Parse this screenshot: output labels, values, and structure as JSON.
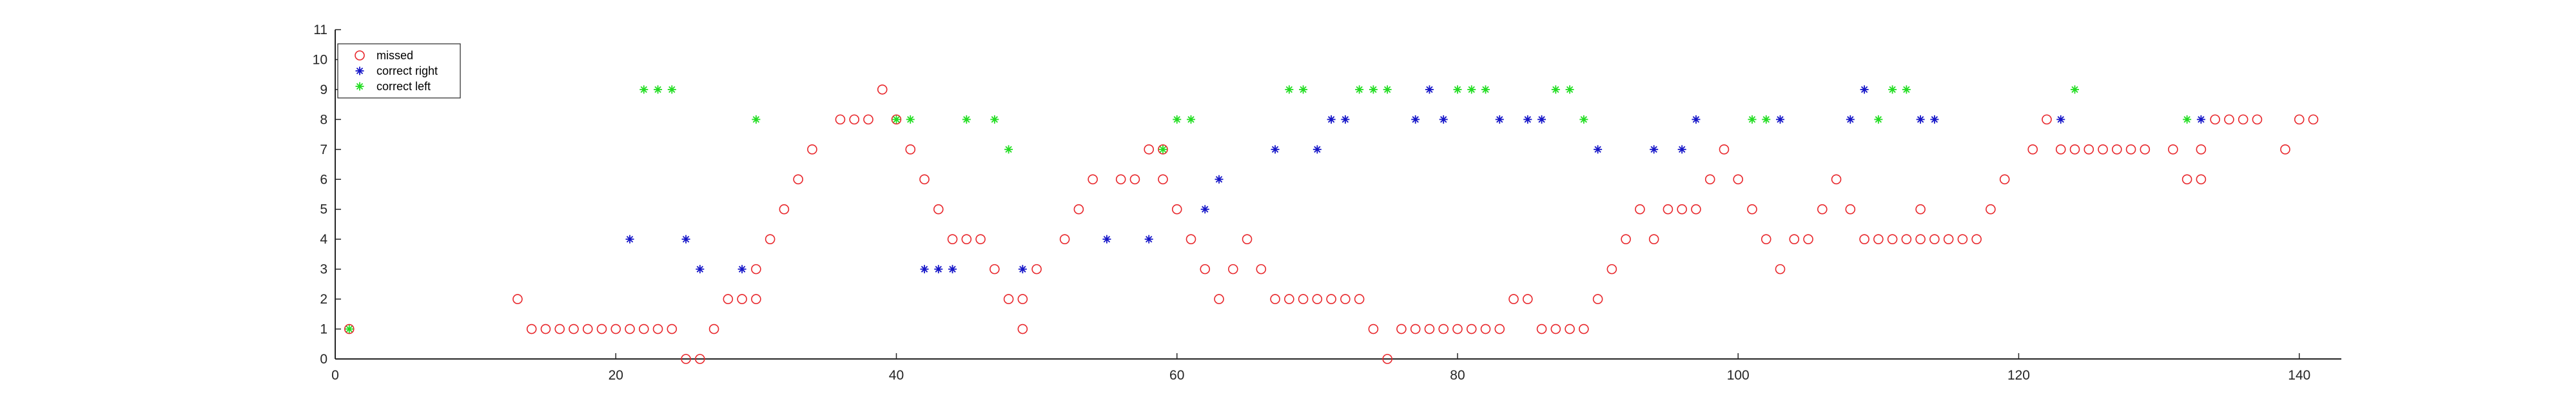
{
  "chart_data": {
    "type": "scatter",
    "title": "",
    "xlabel": "",
    "ylabel": "",
    "xlim": [
      0,
      143
    ],
    "ylim": [
      0,
      11
    ],
    "xticks": [
      "0",
      "20",
      "40",
      "60",
      "80",
      "100",
      "120",
      "140"
    ],
    "yticks": [
      "0",
      "1",
      "2",
      "3",
      "4",
      "5",
      "6",
      "7",
      "8",
      "9",
      "10",
      "11"
    ],
    "grid": false,
    "legend_location": "top-left",
    "series": [
      {
        "name": "missed",
        "marker": "circle-open",
        "color": "#e8262b",
        "points": [
          [
            1,
            1
          ],
          [
            13,
            2
          ],
          [
            14,
            1
          ],
          [
            15,
            1
          ],
          [
            16,
            1
          ],
          [
            17,
            1
          ],
          [
            18,
            1
          ],
          [
            19,
            1
          ],
          [
            20,
            1
          ],
          [
            21,
            1
          ],
          [
            22,
            1
          ],
          [
            23,
            1
          ],
          [
            24,
            1
          ],
          [
            25,
            0
          ],
          [
            26,
            0
          ],
          [
            27,
            1
          ],
          [
            28,
            2
          ],
          [
            29,
            2
          ],
          [
            30,
            2
          ],
          [
            30,
            3
          ],
          [
            31,
            4
          ],
          [
            32,
            5
          ],
          [
            33,
            6
          ],
          [
            34,
            7
          ],
          [
            36,
            8
          ],
          [
            37,
            8
          ],
          [
            38,
            8
          ],
          [
            39,
            9
          ],
          [
            40,
            8
          ],
          [
            41,
            7
          ],
          [
            42,
            6
          ],
          [
            43,
            5
          ],
          [
            44,
            4
          ],
          [
            45,
            4
          ],
          [
            46,
            4
          ],
          [
            47,
            3
          ],
          [
            48,
            2
          ],
          [
            49,
            1
          ],
          [
            49,
            2
          ],
          [
            50,
            3
          ],
          [
            52,
            4
          ],
          [
            53,
            5
          ],
          [
            54,
            6
          ],
          [
            56,
            6
          ],
          [
            57,
            6
          ],
          [
            58,
            7
          ],
          [
            59,
            7
          ],
          [
            59,
            6
          ],
          [
            60,
            5
          ],
          [
            61,
            4
          ],
          [
            62,
            3
          ],
          [
            63,
            2
          ],
          [
            64,
            3
          ],
          [
            65,
            4
          ],
          [
            66,
            3
          ],
          [
            67,
            2
          ],
          [
            68,
            2
          ],
          [
            69,
            2
          ],
          [
            70,
            2
          ],
          [
            71,
            2
          ],
          [
            72,
            2
          ],
          [
            73,
            2
          ],
          [
            74,
            1
          ],
          [
            75,
            0
          ],
          [
            76,
            1
          ],
          [
            77,
            1
          ],
          [
            78,
            1
          ],
          [
            79,
            1
          ],
          [
            80,
            1
          ],
          [
            81,
            1
          ],
          [
            82,
            1
          ],
          [
            83,
            1
          ],
          [
            84,
            2
          ],
          [
            85,
            2
          ],
          [
            86,
            1
          ],
          [
            87,
            1
          ],
          [
            88,
            1
          ],
          [
            89,
            1
          ],
          [
            90,
            2
          ],
          [
            91,
            3
          ],
          [
            92,
            4
          ],
          [
            93,
            5
          ],
          [
            94,
            4
          ],
          [
            95,
            5
          ],
          [
            96,
            5
          ],
          [
            97,
            5
          ],
          [
            98,
            6
          ],
          [
            99,
            7
          ],
          [
            100,
            6
          ],
          [
            101,
            5
          ],
          [
            102,
            4
          ],
          [
            103,
            3
          ],
          [
            104,
            4
          ],
          [
            105,
            4
          ],
          [
            106,
            5
          ],
          [
            107,
            6
          ],
          [
            108,
            5
          ],
          [
            109,
            4
          ],
          [
            110,
            4
          ],
          [
            111,
            4
          ],
          [
            112,
            4
          ],
          [
            113,
            5
          ],
          [
            113,
            4
          ],
          [
            114,
            4
          ],
          [
            115,
            4
          ],
          [
            116,
            4
          ],
          [
            117,
            4
          ],
          [
            118,
            5
          ],
          [
            119,
            6
          ],
          [
            121,
            7
          ],
          [
            122,
            8
          ],
          [
            123,
            7
          ],
          [
            124,
            7
          ],
          [
            125,
            7
          ],
          [
            126,
            7
          ],
          [
            127,
            7
          ],
          [
            128,
            7
          ],
          [
            129,
            7
          ],
          [
            131,
            7
          ],
          [
            132,
            6
          ],
          [
            133,
            6
          ],
          [
            133,
            7
          ],
          [
            134,
            8
          ],
          [
            135,
            8
          ],
          [
            136,
            8
          ],
          [
            137,
            8
          ],
          [
            139,
            7
          ],
          [
            140,
            8
          ],
          [
            141,
            8
          ]
        ]
      },
      {
        "name": "correct right",
        "marker": "asterisk",
        "color": "#1515c8",
        "points": [
          [
            21,
            4
          ],
          [
            25,
            4
          ],
          [
            26,
            3
          ],
          [
            29,
            3
          ],
          [
            42,
            3
          ],
          [
            43,
            3
          ],
          [
            44,
            3
          ],
          [
            49,
            3
          ],
          [
            55,
            4
          ],
          [
            58,
            4
          ],
          [
            62,
            5
          ],
          [
            63,
            6
          ],
          [
            67,
            7
          ],
          [
            70,
            7
          ],
          [
            71,
            8
          ],
          [
            72,
            8
          ],
          [
            77,
            8
          ],
          [
            78,
            9
          ],
          [
            79,
            8
          ],
          [
            83,
            8
          ],
          [
            85,
            8
          ],
          [
            86,
            8
          ],
          [
            90,
            7
          ],
          [
            94,
            7
          ],
          [
            96,
            7
          ],
          [
            97,
            8
          ],
          [
            103,
            8
          ],
          [
            108,
            8
          ],
          [
            109,
            9
          ],
          [
            113,
            8
          ],
          [
            114,
            8
          ],
          [
            123,
            8
          ],
          [
            133,
            8
          ]
        ]
      },
      {
        "name": "correct left",
        "marker": "asterisk",
        "color": "#22dd22",
        "points": [
          [
            1,
            1
          ],
          [
            22,
            9
          ],
          [
            23,
            9
          ],
          [
            24,
            9
          ],
          [
            30,
            8
          ],
          [
            40,
            8
          ],
          [
            41,
            8
          ],
          [
            45,
            8
          ],
          [
            47,
            8
          ],
          [
            48,
            7
          ],
          [
            59,
            7
          ],
          [
            60,
            8
          ],
          [
            61,
            8
          ],
          [
            68,
            9
          ],
          [
            69,
            9
          ],
          [
            73,
            9
          ],
          [
            74,
            9
          ],
          [
            75,
            9
          ],
          [
            80,
            9
          ],
          [
            81,
            9
          ],
          [
            82,
            9
          ],
          [
            87,
            9
          ],
          [
            88,
            9
          ],
          [
            89,
            8
          ],
          [
            101,
            8
          ],
          [
            102,
            8
          ],
          [
            110,
            8
          ],
          [
            111,
            9
          ],
          [
            112,
            9
          ],
          [
            124,
            9
          ],
          [
            132,
            8
          ]
        ]
      }
    ]
  }
}
